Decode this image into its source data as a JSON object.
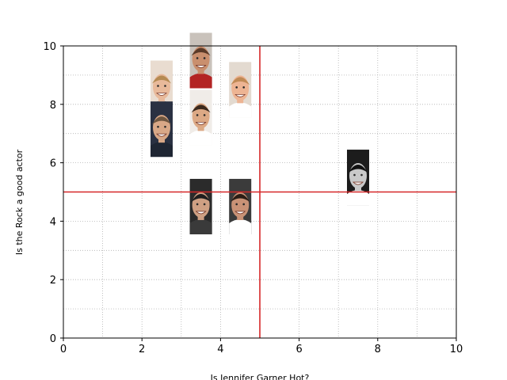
{
  "chart_data": {
    "type": "scatter",
    "title": "",
    "xlabel": "Is Jennifer Garner Hot?",
    "ylabel": "Is the Rock a good actor",
    "xlim": [
      0,
      10
    ],
    "ylim": [
      0,
      10
    ],
    "xticks": [
      0,
      2,
      4,
      6,
      8,
      10
    ],
    "yticks": [
      0,
      2,
      4,
      6,
      8,
      10
    ],
    "minor_ticks": [
      1,
      3,
      5,
      7,
      9
    ],
    "grid": true,
    "grid_style": "dotted",
    "reference_lines": {
      "x": 5,
      "y": 5,
      "color": "#d62728"
    },
    "marker_style": "face-photo",
    "points": [
      {
        "x": 2.5,
        "y": 8.55
      },
      {
        "x": 2.5,
        "y": 7.15
      },
      {
        "x": 3.5,
        "y": 9.5
      },
      {
        "x": 3.5,
        "y": 7.55
      },
      {
        "x": 4.5,
        "y": 8.5
      },
      {
        "x": 3.5,
        "y": 4.5
      },
      {
        "x": 4.5,
        "y": 4.5
      },
      {
        "x": 7.5,
        "y": 5.5
      }
    ]
  }
}
